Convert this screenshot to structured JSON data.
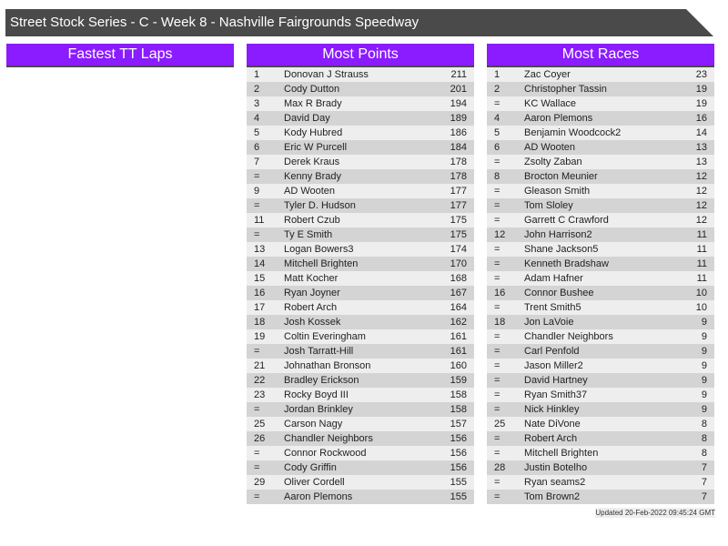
{
  "title": "Street Stock Series - C - Week 8 - Nashville Fairgrounds Speedway",
  "panels": {
    "fastest": {
      "heading": "Fastest TT Laps",
      "rows": []
    },
    "points": {
      "heading": "Most Points",
      "rows": [
        [
          "1",
          "Donovan J Strauss",
          "211"
        ],
        [
          "2",
          "Cody Dutton",
          "201"
        ],
        [
          "3",
          "Max R Brady",
          "194"
        ],
        [
          "4",
          "David Day",
          "189"
        ],
        [
          "5",
          "Kody Hubred",
          "186"
        ],
        [
          "6",
          "Eric W Purcell",
          "184"
        ],
        [
          "7",
          "Derek Kraus",
          "178"
        ],
        [
          "=",
          "Kenny Brady",
          "178"
        ],
        [
          "9",
          "AD Wooten",
          "177"
        ],
        [
          "=",
          "Tyler D. Hudson",
          "177"
        ],
        [
          "11",
          "Robert Czub",
          "175"
        ],
        [
          "=",
          "Ty E Smith",
          "175"
        ],
        [
          "13",
          "Logan Bowers3",
          "174"
        ],
        [
          "14",
          "Mitchell Brighten",
          "170"
        ],
        [
          "15",
          "Matt Kocher",
          "168"
        ],
        [
          "16",
          "Ryan Joyner",
          "167"
        ],
        [
          "17",
          "Robert Arch",
          "164"
        ],
        [
          "18",
          "Josh Kossek",
          "162"
        ],
        [
          "19",
          "Coltin Everingham",
          "161"
        ],
        [
          "=",
          "Josh Tarratt-Hill",
          "161"
        ],
        [
          "21",
          "Johnathan Bronson",
          "160"
        ],
        [
          "22",
          "Bradley Erickson",
          "159"
        ],
        [
          "23",
          "Rocky Boyd III",
          "158"
        ],
        [
          "=",
          "Jordan Brinkley",
          "158"
        ],
        [
          "25",
          "Carson Nagy",
          "157"
        ],
        [
          "26",
          "Chandler Neighbors",
          "156"
        ],
        [
          "=",
          "Connor Rockwood",
          "156"
        ],
        [
          "=",
          "Cody Griffin",
          "156"
        ],
        [
          "29",
          "Oliver Cordell",
          "155"
        ],
        [
          "=",
          "Aaron Plemons",
          "155"
        ]
      ]
    },
    "races": {
      "heading": "Most Races",
      "rows": [
        [
          "1",
          "Zac Coyer",
          "23"
        ],
        [
          "2",
          "Christopher Tassin",
          "19"
        ],
        [
          "=",
          "KC Wallace",
          "19"
        ],
        [
          "4",
          "Aaron Plemons",
          "16"
        ],
        [
          "5",
          "Benjamin Woodcock2",
          "14"
        ],
        [
          "6",
          "AD Wooten",
          "13"
        ],
        [
          "=",
          "Zsolty Zaban",
          "13"
        ],
        [
          "8",
          "Brocton Meunier",
          "12"
        ],
        [
          "=",
          "Gleason Smith",
          "12"
        ],
        [
          "=",
          "Tom Sloley",
          "12"
        ],
        [
          "=",
          "Garrett C Crawford",
          "12"
        ],
        [
          "12",
          "John Harrison2",
          "11"
        ],
        [
          "=",
          "Shane Jackson5",
          "11"
        ],
        [
          "=",
          "Kenneth Bradshaw",
          "11"
        ],
        [
          "=",
          "Adam Hafner",
          "11"
        ],
        [
          "16",
          "Connor Bushee",
          "10"
        ],
        [
          "=",
          "Trent Smith5",
          "10"
        ],
        [
          "18",
          "Jon LaVoie",
          "9"
        ],
        [
          "=",
          "Chandler Neighbors",
          "9"
        ],
        [
          "=",
          "Carl Penfold",
          "9"
        ],
        [
          "=",
          "Jason Miller2",
          "9"
        ],
        [
          "=",
          "David Hartney",
          "9"
        ],
        [
          "=",
          "Ryan Smith37",
          "9"
        ],
        [
          "=",
          "Nick Hinkley",
          "9"
        ],
        [
          "25",
          "Nate DiVone",
          "8"
        ],
        [
          "=",
          "Robert Arch",
          "8"
        ],
        [
          "=",
          "Mitchell Brighten",
          "8"
        ],
        [
          "28",
          "Justin Botelho",
          "7"
        ],
        [
          "=",
          "Ryan seams2",
          "7"
        ],
        [
          "=",
          "Tom Brown2",
          "7"
        ]
      ]
    }
  },
  "updated": "Updated 20-Feb-2022 09:45:24 GMT"
}
